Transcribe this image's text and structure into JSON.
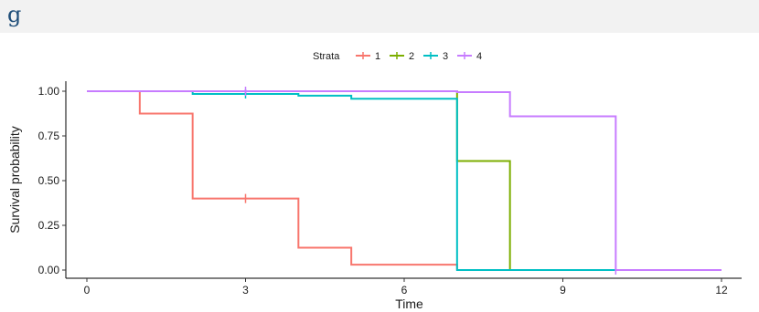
{
  "panel": {
    "letter": "g"
  },
  "chart_data": {
    "type": "line",
    "xlabel": "Time",
    "ylabel": "Survival probability",
    "xlim": [
      0,
      12
    ],
    "ylim": [
      0,
      1
    ],
    "x_ticks": [
      0,
      3,
      6,
      9,
      12
    ],
    "x_tick_labels": [
      "0",
      "3",
      "6",
      "9",
      "12"
    ],
    "y_ticks": [
      0,
      0.25,
      0.5,
      0.75,
      1
    ],
    "y_tick_labels": [
      "0.00",
      "0.25",
      "0.50",
      "0.75",
      "1.00"
    ],
    "grid": false,
    "legend": {
      "title": "Strata",
      "position": "top"
    },
    "series": [
      {
        "name": "1",
        "color": "#F8766D",
        "steps": [
          [
            0,
            1
          ],
          [
            1,
            0.875
          ],
          [
            2,
            0.4
          ],
          [
            4,
            0.125
          ],
          [
            5,
            0.03
          ],
          [
            7,
            0.03
          ],
          [
            7,
            0
          ]
        ],
        "end_x": 7,
        "censor": [
          [
            3,
            0.4
          ]
        ]
      },
      {
        "name": "2",
        "color": "#7CAE00",
        "steps": [
          [
            0,
            1
          ],
          [
            7,
            1
          ],
          [
            7,
            0.61
          ],
          [
            8,
            0.61
          ],
          [
            8,
            0
          ]
        ],
        "end_x": 8,
        "censor": []
      },
      {
        "name": "3",
        "color": "#00BFC4",
        "steps": [
          [
            0,
            1
          ],
          [
            2,
            0.985
          ],
          [
            4,
            0.975
          ],
          [
            5,
            0.958
          ],
          [
            7,
            0.958
          ],
          [
            7,
            0
          ]
        ],
        "end_x": 10,
        "censor": [
          [
            3,
            0.985
          ]
        ]
      },
      {
        "name": "4",
        "color": "#C77CFF",
        "steps": [
          [
            0,
            1
          ],
          [
            7,
            0.995
          ],
          [
            8,
            0.86
          ],
          [
            10,
            0.86
          ],
          [
            10,
            0
          ]
        ],
        "end_x": 12,
        "censor": [
          [
            3,
            1
          ],
          [
            10,
            0
          ]
        ]
      }
    ]
  }
}
